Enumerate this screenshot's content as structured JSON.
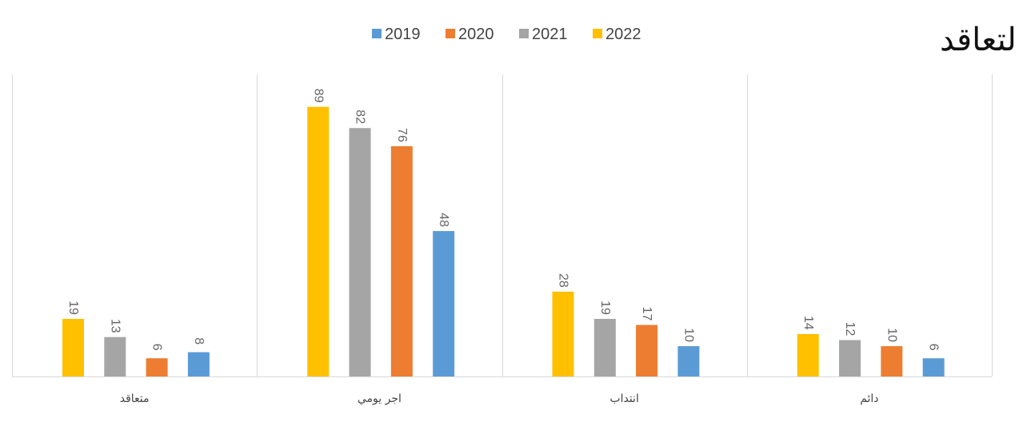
{
  "chart_data": {
    "type": "bar",
    "title": "نوع التعاقد",
    "categories": [
      "متعاقد",
      "اجر يومي",
      "انتداب",
      "دائم"
    ],
    "series": [
      {
        "name": "2022",
        "color": "#FFC000",
        "values": [
          19,
          89,
          28,
          14
        ]
      },
      {
        "name": "2021",
        "color": "#A5A5A5",
        "values": [
          13,
          82,
          19,
          12
        ]
      },
      {
        "name": "2020",
        "color": "#ED7D31",
        "values": [
          6,
          76,
          17,
          10
        ]
      },
      {
        "name": "2019",
        "color": "#5B9BD5",
        "values": [
          8,
          48,
          10,
          6
        ]
      }
    ],
    "legend_order": [
      "2019",
      "2020",
      "2021",
      "2022"
    ],
    "legend_position": "top",
    "ylim": [
      0,
      100
    ],
    "grid": false,
    "category_separators": true,
    "data_labels": true
  }
}
